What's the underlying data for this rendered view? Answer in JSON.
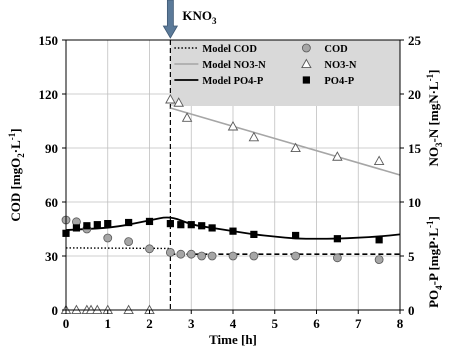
{
  "chart_data": {
    "type": "scatter",
    "annotation": {
      "label": "KNO",
      "sub": "3",
      "x": 2.5
    },
    "xlabel": "Time [h]",
    "xlim": [
      0,
      8
    ],
    "xticks": [
      0,
      1,
      2,
      3,
      4,
      5,
      6,
      7,
      8
    ],
    "ylabel_left": {
      "main": "COD [mgO",
      "sub": "2",
      "tail": "·L",
      "sup": "-1",
      "end": "]"
    },
    "ylim_left": [
      0,
      150
    ],
    "yticks_left": [
      0,
      30,
      60,
      90,
      120,
      150
    ],
    "ylabel_right_top": {
      "main": "NO",
      "sub": "3",
      "tail": "-N [mgN·L",
      "sup": "-1",
      "end": "]"
    },
    "ylabel_right_bottom": {
      "main": "PO",
      "sub": "4",
      "tail": "-P [mgP·L",
      "sup": "-1",
      "end": "]"
    },
    "ylim_right": [
      0,
      25
    ],
    "yticks_right": [
      0,
      5,
      10,
      15,
      20,
      25
    ],
    "legend": {
      "placement": "top-right",
      "items": [
        {
          "key": "model_cod",
          "label": "Model COD"
        },
        {
          "key": "cod",
          "label": "COD"
        },
        {
          "key": "model_no3",
          "label": "Model NO3-N"
        },
        {
          "key": "no3",
          "label": "NO3-N"
        },
        {
          "key": "model_po4",
          "label": "Model PO4-P"
        },
        {
          "key": "po4",
          "label": "PO4-P"
        }
      ]
    },
    "series": {
      "cod": {
        "name": "COD",
        "axis": "left",
        "marker": "circle",
        "color": "#a6a6a6",
        "x": [
          0,
          0.25,
          0.5,
          1,
          1.5,
          2,
          2.5,
          2.75,
          3,
          3.25,
          3.5,
          4,
          4.5,
          5.5,
          6.5,
          7.5
        ],
        "y": [
          50,
          49,
          45,
          40,
          38,
          34,
          32,
          31,
          31,
          30,
          30,
          30,
          30,
          30,
          29,
          28
        ]
      },
      "no3": {
        "name": "NO3-N",
        "axis": "right",
        "marker": "triangle",
        "color": "#ffffff",
        "x": [
          0,
          0.25,
          0.5,
          0.6,
          0.75,
          1,
          1.5,
          2,
          2.5,
          2.7,
          2.9,
          4,
          4.5,
          5.5,
          6.5,
          7.5
        ],
        "y": [
          0,
          0,
          0,
          0,
          0,
          0,
          0,
          0,
          19.5,
          19.2,
          17.8,
          17.0,
          16.0,
          15.0,
          14.2,
          13.8
        ]
      },
      "po4": {
        "name": "PO4-P",
        "axis": "right",
        "marker": "square",
        "color": "#000000",
        "x": [
          0,
          0.25,
          0.5,
          0.75,
          1,
          1.5,
          2,
          2.5,
          2.75,
          3,
          3.25,
          3.5,
          4,
          4.5,
          5.5,
          6.5,
          7.5
        ],
        "y": [
          7.1,
          7.6,
          7.8,
          7.9,
          8.0,
          8.1,
          8.2,
          8.0,
          7.9,
          7.9,
          7.8,
          7.6,
          7.3,
          7.0,
          6.9,
          6.6,
          6.5
        ]
      },
      "model_cod": {
        "name": "Model COD",
        "axis": "left",
        "style": "dotted-then-dashed",
        "color": "#000000",
        "x": [
          0,
          2.5,
          2.5,
          8
        ],
        "y": [
          34.5,
          34.2,
          31,
          31
        ]
      },
      "model_no3": {
        "name": "Model NO3-N",
        "axis": "right",
        "style": "solid",
        "color": "#a6a6a6",
        "x": [
          2.5,
          8
        ],
        "y": [
          18.7,
          12.5
        ]
      },
      "model_po4": {
        "name": "Model PO4-P",
        "axis": "right",
        "style": "solid",
        "color": "#000000",
        "x": [
          0,
          0.5,
          1,
          1.5,
          2,
          2.5,
          3,
          3.5,
          4,
          4.5,
          5,
          5.5,
          6,
          6.5,
          7,
          7.5,
          8
        ],
        "y": [
          7.4,
          7.5,
          7.6,
          7.9,
          8.3,
          8.7,
          7.9,
          7.6,
          7.3,
          7.0,
          6.8,
          6.6,
          6.6,
          6.6,
          6.7,
          6.8,
          7.0
        ]
      }
    },
    "vline": {
      "x": 2.5,
      "style": "dashed"
    }
  }
}
